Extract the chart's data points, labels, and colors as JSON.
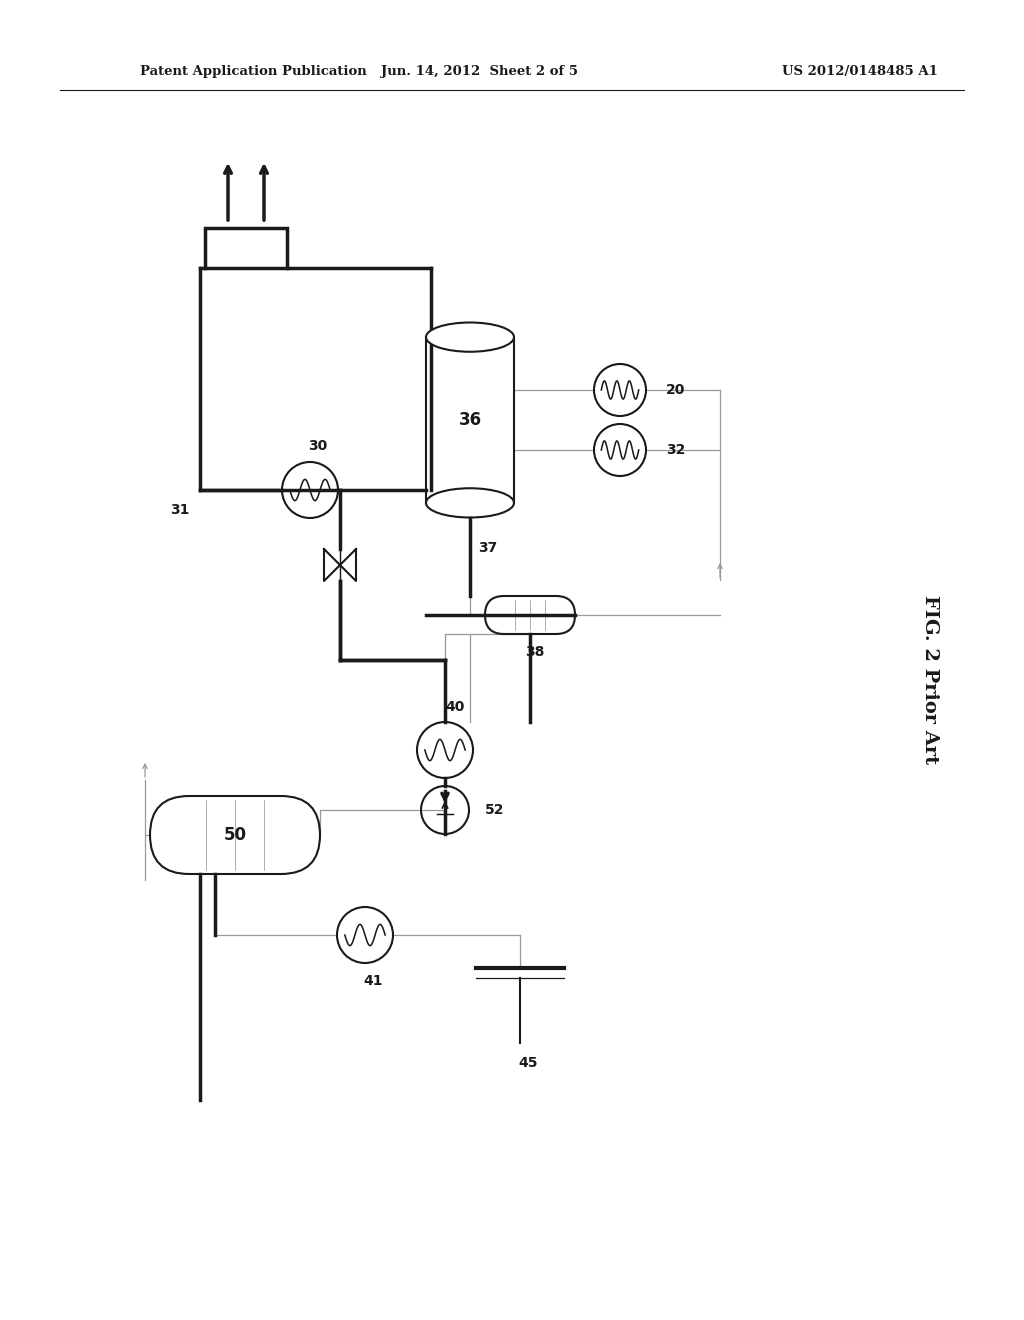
{
  "header_left": "Patent Application Publication",
  "header_center": "Jun. 14, 2012  Sheet 2 of 5",
  "header_right": "US 2012/0148485 A1",
  "fig_label": "FIG. 2 Prior Art",
  "background_color": "#ffffff",
  "line_color": "#1a1a1a",
  "thin_line_color": "#999999",
  "thick_lw": 2.5,
  "thin_lw": 0.9,
  "med_lw": 1.5
}
